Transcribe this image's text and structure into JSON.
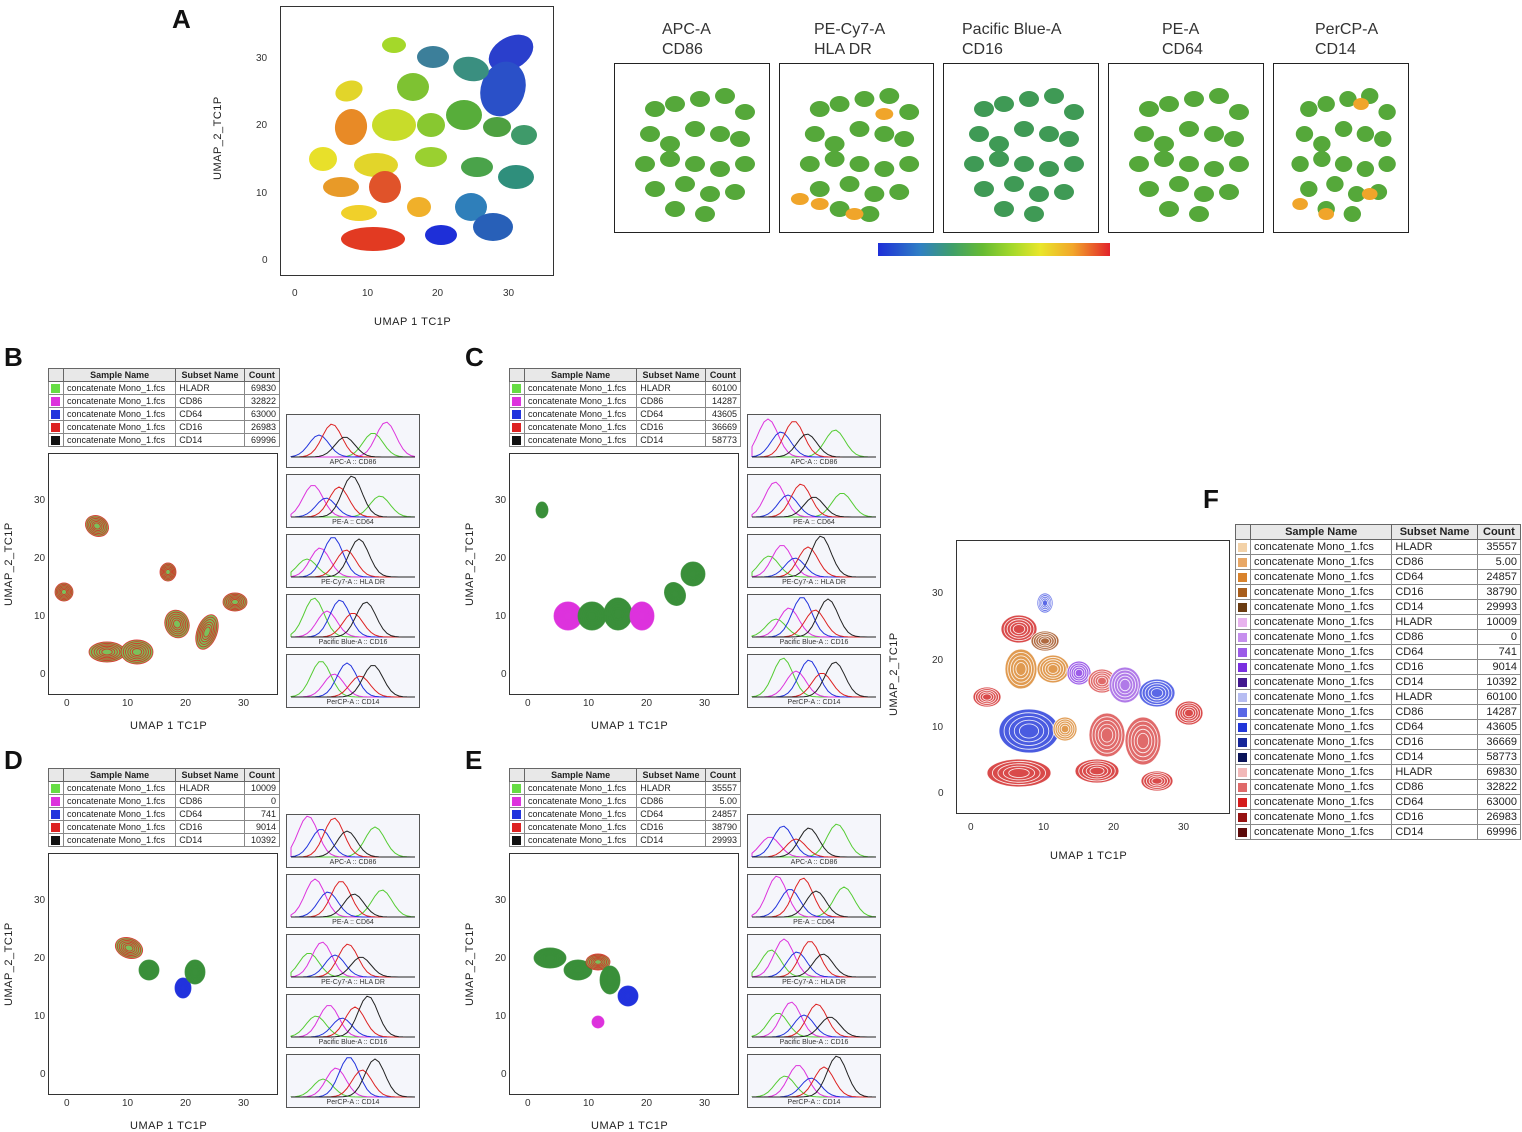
{
  "panels": {
    "A": {
      "letter": "A",
      "xlabel": "UMAP 1 TC1P",
      "ylabel": "UMAP_2_TC1P",
      "xticks": [
        "0",
        "10",
        "20",
        "30"
      ],
      "yticks": [
        "0",
        "10",
        "20",
        "30"
      ],
      "markers": [
        {
          "channel": "APC-A",
          "marker": "CD86"
        },
        {
          "channel": "PE-Cy7-A",
          "marker": "HLA DR"
        },
        {
          "channel": "Pacific Blue-A",
          "marker": "CD16"
        },
        {
          "channel": "PE-A",
          "marker": "CD64"
        },
        {
          "channel": "PerCP-A",
          "marker": "CD14"
        }
      ],
      "colorscale": [
        "#1e2fd8",
        "#3f9f6a",
        "#a5d92a",
        "#e9e62a",
        "#e2232a"
      ]
    },
    "B": {
      "letter": "B",
      "xlabel": "UMAP 1 TC1P",
      "ylabel": "UMAP_2_TC1P"
    },
    "C": {
      "letter": "C",
      "xlabel": "UMAP 1 TC1P",
      "ylabel": "UMAP_2_TC1P"
    },
    "D": {
      "letter": "D",
      "xlabel": "UMAP 1 TC1P",
      "ylabel": "UMAP_2_TC1P"
    },
    "E": {
      "letter": "E",
      "xlabel": "UMAP 1 TC1P",
      "ylabel": "UMAP_2_TC1P"
    },
    "F": {
      "letter": "F",
      "xlabel": "UMAP 1 TC1P",
      "ylabel": "UMAP_2_TC1P"
    }
  },
  "legend_headers": {
    "sample": "Sample Name",
    "subset": "Subset Name",
    "count": "Count"
  },
  "sample_name": "concatenate Mono_1.fcs",
  "hist_labels": [
    "APC-A :: CD86",
    "PE-A :: CD64",
    "PE-Cy7-A :: HLA DR",
    "Pacific Blue-A :: CD16",
    "PerCP-A :: CD14"
  ],
  "legend_colors": [
    "#66dd44",
    "#dd33dd",
    "#2233dd",
    "#dd2222",
    "#111111"
  ],
  "tables": {
    "B": [
      {
        "subset": "HLADR",
        "count": "69830"
      },
      {
        "subset": "CD86",
        "count": "32822"
      },
      {
        "subset": "CD64",
        "count": "63000"
      },
      {
        "subset": "CD16",
        "count": "26983"
      },
      {
        "subset": "CD14",
        "count": "69996"
      }
    ],
    "C": [
      {
        "subset": "HLADR",
        "count": "60100"
      },
      {
        "subset": "CD86",
        "count": "14287"
      },
      {
        "subset": "CD64",
        "count": "43605"
      },
      {
        "subset": "CD16",
        "count": "36669"
      },
      {
        "subset": "CD14",
        "count": "58773"
      }
    ],
    "D": [
      {
        "subset": "HLADR",
        "count": "10009"
      },
      {
        "subset": "CD86",
        "count": "0"
      },
      {
        "subset": "CD64",
        "count": "741"
      },
      {
        "subset": "CD16",
        "count": "9014"
      },
      {
        "subset": "CD14",
        "count": "10392"
      }
    ],
    "E": [
      {
        "subset": "HLADR",
        "count": "35557"
      },
      {
        "subset": "CD86",
        "count": "5.00"
      },
      {
        "subset": "CD64",
        "count": "24857"
      },
      {
        "subset": "CD16",
        "count": "38790"
      },
      {
        "subset": "CD14",
        "count": "29993"
      }
    ],
    "F": [
      {
        "color": "#f3d2a8",
        "subset": "HLADR",
        "count": "35557"
      },
      {
        "color": "#e8a867",
        "subset": "CD86",
        "count": "5.00"
      },
      {
        "color": "#d9832c",
        "subset": "CD64",
        "count": "24857"
      },
      {
        "color": "#a85e1c",
        "subset": "CD16",
        "count": "38790"
      },
      {
        "color": "#6b3c12",
        "subset": "CD14",
        "count": "29993"
      },
      {
        "color": "#e8b3ee",
        "subset": "HLADR",
        "count": "10009"
      },
      {
        "color": "#c68fee",
        "subset": "CD86",
        "count": "0"
      },
      {
        "color": "#9c5ce8",
        "subset": "CD64",
        "count": "741"
      },
      {
        "color": "#7a2fe0",
        "subset": "CD16",
        "count": "9014"
      },
      {
        "color": "#42188e",
        "subset": "CD14",
        "count": "10392"
      },
      {
        "color": "#b7bdf2",
        "subset": "HLADR",
        "count": "60100"
      },
      {
        "color": "#5a68e6",
        "subset": "CD86",
        "count": "14287"
      },
      {
        "color": "#2236d8",
        "subset": "CD64",
        "count": "43605"
      },
      {
        "color": "#162698",
        "subset": "CD16",
        "count": "36669"
      },
      {
        "color": "#0b1458",
        "subset": "CD14",
        "count": "58773"
      },
      {
        "color": "#f2b9b9",
        "subset": "HLADR",
        "count": "69830"
      },
      {
        "color": "#e06a6a",
        "subset": "CD86",
        "count": "32822"
      },
      {
        "color": "#d41c1c",
        "subset": "CD64",
        "count": "63000"
      },
      {
        "color": "#961212",
        "subset": "CD16",
        "count": "26983"
      },
      {
        "color": "#5c0a0a",
        "subset": "CD14",
        "count": "69996"
      }
    ]
  }
}
